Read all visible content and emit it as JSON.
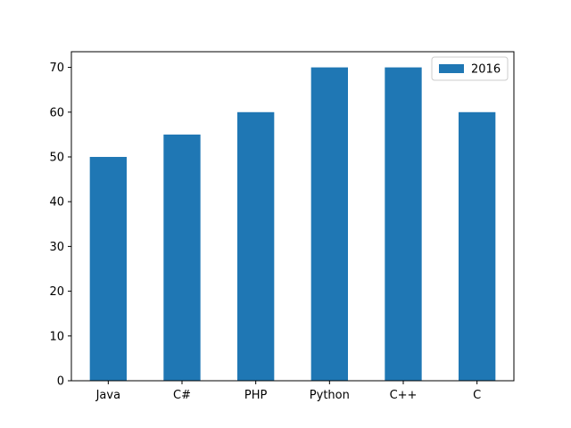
{
  "chart_data": {
    "type": "bar",
    "categories": [
      "Java",
      "C#",
      "PHP",
      "Python",
      "C++",
      "C"
    ],
    "series": [
      {
        "name": "2016",
        "values": [
          50,
          55,
          60,
          70,
          70,
          60
        ]
      }
    ],
    "title": "",
    "xlabel": "",
    "ylabel": "",
    "ylim": [
      0,
      70
    ],
    "yticks": [
      "0",
      "10",
      "20",
      "30",
      "40",
      "50",
      "60",
      "70"
    ],
    "grid": false,
    "legend_position": "top-right",
    "bar_color": "#1f77b4"
  }
}
